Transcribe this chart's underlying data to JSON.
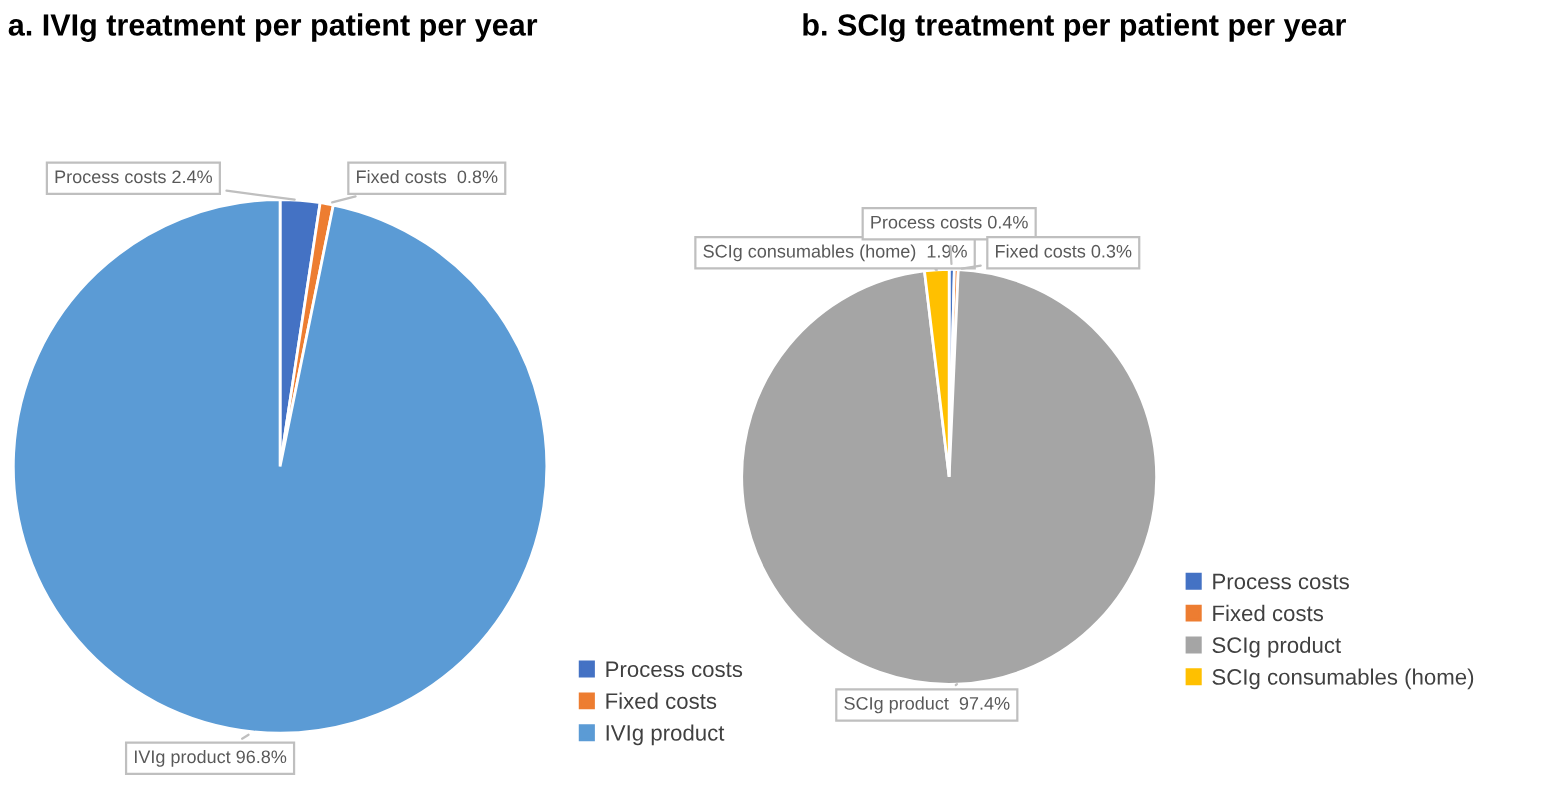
{
  "chart_data": [
    {
      "type": "pie",
      "title": "a. IVIg treatment per patient per year",
      "categories": [
        "Process costs",
        "Fixed costs",
        "IVIg product"
      ],
      "values": [
        2.4,
        0.8,
        96.8
      ],
      "colors": [
        "#4472c4",
        "#ed7d31",
        "#5b9bd5"
      ],
      "value_labels": [
        "Process costs 2.4%",
        "Fixed costs  0.8%",
        "IVIg product 96.8%"
      ],
      "legend": "bottom right"
    },
    {
      "type": "pie",
      "title": "b. SCIg treatment per patient per year",
      "categories": [
        "Process costs",
        "Fixed costs",
        "SCIg product",
        "SCIg consumables (home)"
      ],
      "values": [
        0.4,
        0.3,
        97.4,
        1.9
      ],
      "colors": [
        "#4472c4",
        "#ed7d31",
        "#a5a5a5",
        "#ffc000"
      ],
      "value_labels": [
        "Process costs 0.4%",
        "Fixed costs 0.3%",
        "SCIg product  97.4%",
        "SCIg consumables (home)  1.9%"
      ],
      "legend": "bottom right"
    }
  ]
}
